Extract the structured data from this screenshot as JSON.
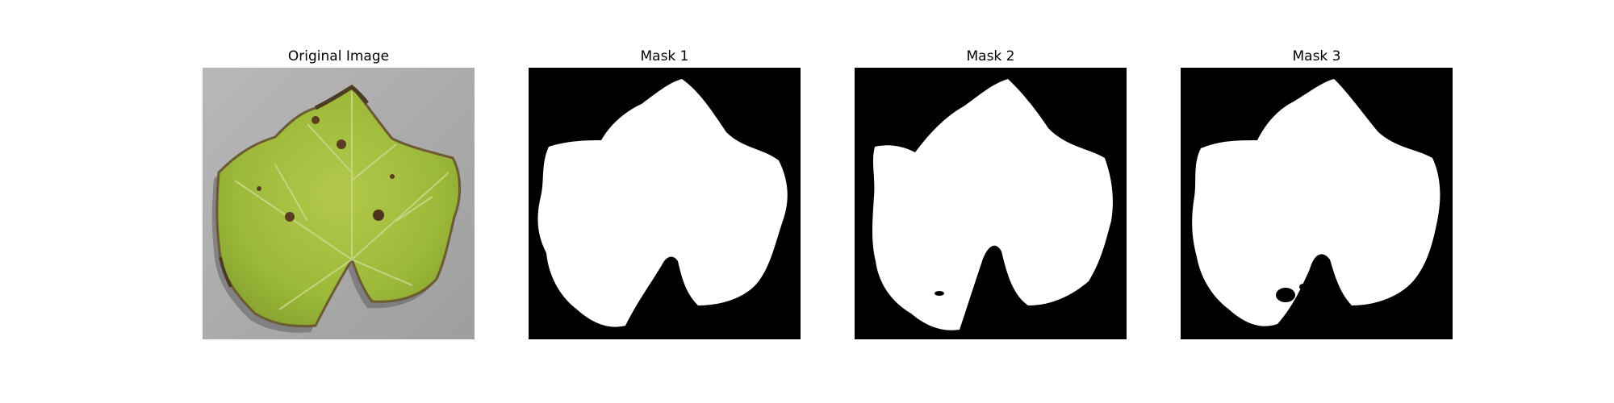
{
  "panels": [
    {
      "title": "Original Image",
      "type": "photo",
      "subject": "leaf"
    },
    {
      "title": "Mask 1",
      "type": "mask"
    },
    {
      "title": "Mask 2",
      "type": "mask"
    },
    {
      "title": "Mask 3",
      "type": "mask"
    }
  ],
  "colors": {
    "mask_background": "#000000",
    "mask_foreground": "#ffffff",
    "photo_background": "#a8a7a7",
    "leaf_green": "#9db93a",
    "leaf_dark_edge": "#5b4a2e"
  }
}
